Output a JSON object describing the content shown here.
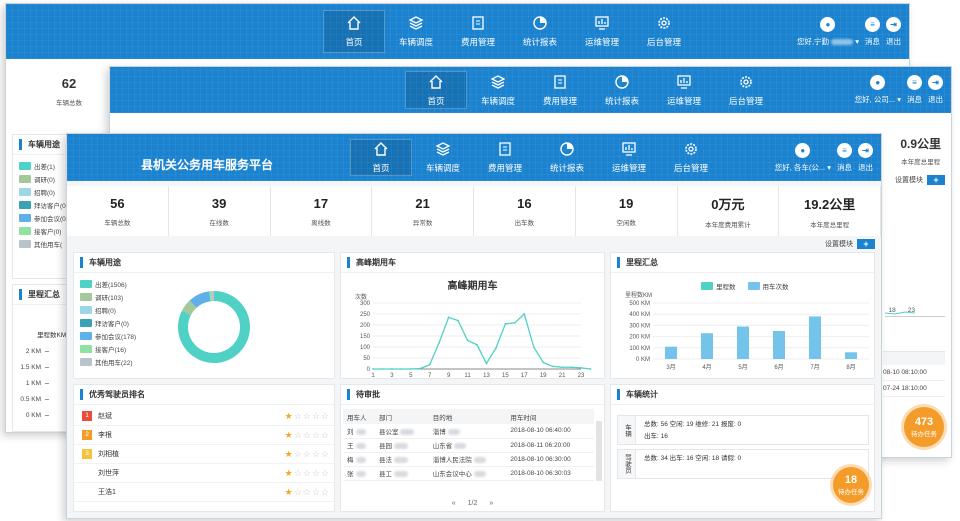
{
  "nav": {
    "items": [
      {
        "label": "首页",
        "icon": "home-icon"
      },
      {
        "label": "车辆调度",
        "icon": "layers-icon"
      },
      {
        "label": "费用管理",
        "icon": "receipt-icon"
      },
      {
        "label": "统计报表",
        "icon": "pie-chart-icon"
      },
      {
        "label": "运维管理",
        "icon": "monitor-chart-icon"
      },
      {
        "label": "后台管理",
        "icon": "gear-icon"
      }
    ],
    "greeting_back": "您好,宁勤",
    "greeting_mid": "您好,",
    "greeting_front": "您好,",
    "org_front": "各车(公...",
    "org_mid": "公司...",
    "messages": "消息",
    "logout": "退出"
  },
  "back": {
    "total_value": "62",
    "total_label": "车辆总数",
    "usage_title": "车辆用途",
    "legend": [
      "出差(1)",
      "调研(0)",
      "招聘(0)",
      "拜访客户(0",
      "参加会议(0",
      "接客户(0)",
      "其他用车("
    ],
    "mileage_title": "里程汇总",
    "mileage_unit": "里程数KM",
    "y_ticks": [
      "2 KM",
      "1.5 KM",
      "1 KM",
      "0.5 KM",
      "0 KM"
    ]
  },
  "mid": {
    "annual_mileage": "0.9公里",
    "annual_label": "本年度总里程",
    "setting": "设置模块",
    "x_ticks": [
      "18",
      "23"
    ],
    "dates": [
      "08-10 08:10:00",
      "07-24 18:10:00"
    ],
    "pending_count": "473",
    "pending_label": "待办任务"
  },
  "app_title": "县机关公务用车服务平台",
  "stats": [
    {
      "value": "56",
      "label": "车辆总数"
    },
    {
      "value": "39",
      "label": "在线数"
    },
    {
      "value": "17",
      "label": "离线数"
    },
    {
      "value": "21",
      "label": "异常数"
    },
    {
      "value": "16",
      "label": "出车数"
    },
    {
      "value": "19",
      "label": "空闲数"
    },
    {
      "value": "0万元",
      "label": "本年度费用累计"
    },
    {
      "value": "19.2公里",
      "label": "本年度总里程"
    }
  ],
  "settings_label": "设置模块",
  "usage": {
    "title": "车辆用途",
    "items": [
      {
        "label": "出差(1506)",
        "color": "#4fd1c5"
      },
      {
        "label": "调研(103)",
        "color": "#a3c99a"
      },
      {
        "label": "招聘(0)",
        "color": "#9bd6e9"
      },
      {
        "label": "拜访客户(0)",
        "color": "#37a3b5"
      },
      {
        "label": "参加会议(178)",
        "color": "#5fb0e8"
      },
      {
        "label": "接客户(16)",
        "color": "#8fe3a2"
      },
      {
        "label": "其他用车(22)",
        "color": "#b8c3ca"
      }
    ]
  },
  "peak": {
    "panel_title": "高峰期用车",
    "chart_title": "高峰期用车",
    "ylabel": "次数"
  },
  "mileage": {
    "panel_title": "里程汇总",
    "legend_a": "里程数",
    "legend_b": "用车次数",
    "ylabel": "里程数KM"
  },
  "chart_data": [
    {
      "type": "line",
      "title": "高峰期用车",
      "ylabel": "次数",
      "ylim": [
        0,
        300
      ],
      "yticks": [
        0,
        50,
        100,
        150,
        200,
        250,
        300
      ],
      "xticks": [
        1,
        3,
        5,
        7,
        9,
        11,
        13,
        15,
        17,
        19,
        21,
        23
      ],
      "x": [
        1,
        2,
        3,
        4,
        5,
        6,
        7,
        8,
        9,
        10,
        11,
        12,
        13,
        14,
        15,
        16,
        17,
        18,
        19,
        20,
        21,
        22,
        23,
        24
      ],
      "values": [
        0,
        0,
        0,
        0,
        0,
        2,
        20,
        120,
        235,
        220,
        130,
        110,
        25,
        95,
        205,
        210,
        250,
        100,
        30,
        12,
        8,
        8,
        5,
        0
      ]
    },
    {
      "type": "bar",
      "categories": [
        "3月",
        "4月",
        "5月",
        "6月",
        "7月",
        "8月"
      ],
      "ylabel": "里程数KM",
      "ylim": [
        0,
        500
      ],
      "yticks": [
        "0 KM",
        "100 KM",
        "200 KM",
        "300 KM",
        "400 KM",
        "500 KM"
      ],
      "series": [
        {
          "name": "用车次数",
          "values": [
            110,
            230,
            290,
            250,
            380,
            60
          ]
        }
      ]
    }
  ],
  "ranking": {
    "title": "优秀驾驶员排名",
    "rows": [
      {
        "rank": "1",
        "name": "赵斌",
        "stars": 1,
        "color": "#e74c3c"
      },
      {
        "rank": "2",
        "name": "李根",
        "stars": 1,
        "color": "#f39c29"
      },
      {
        "rank": "3",
        "name": "刘相植",
        "stars": 1,
        "color": "#f5c23c"
      },
      {
        "rank": "",
        "name": "刘世萍",
        "stars": 1,
        "color": ""
      },
      {
        "rank": "",
        "name": "王浩1",
        "stars": 1,
        "color": ""
      }
    ]
  },
  "approval": {
    "title": "待审批",
    "headers": [
      "用车人",
      "部门",
      "目的地",
      "用车时间"
    ],
    "rows": [
      {
        "user": "刘",
        "dept": "县公室",
        "dest": "淄博",
        "time": "2018-08-10 06:40:00"
      },
      {
        "user": "王",
        "dept": "县园",
        "dest": "山东省",
        "time": "2018-08-11 06:20:00"
      },
      {
        "user": "梅",
        "dept": "县法",
        "dest": "淄博人民法院",
        "time": "2018-08-10 06:30:00"
      },
      {
        "user": "张",
        "dept": "县工",
        "dest": "山东会议中心",
        "time": "2018-08-10 06:30:03"
      }
    ],
    "pager": "1/2"
  },
  "vehicle_stats": {
    "title": "车辆统计",
    "row1_label": "车辆",
    "row1_a": "总数: 56  空闲: 19  维修: 21  报废: 0",
    "row1_b": "出车: 16",
    "row2_label": "驾驶员",
    "row2_a": "总数: 34  出车: 16  空闲: 18  请假: 0"
  },
  "pending": {
    "count": "18",
    "label": "待办任务"
  }
}
